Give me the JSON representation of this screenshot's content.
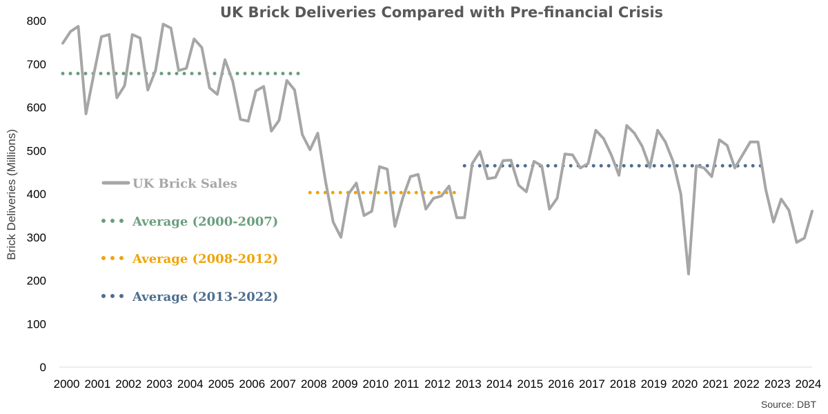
{
  "chart_data": {
    "type": "line",
    "title": "UK Brick Deliveries Compared with Pre-financial Crisis",
    "ylabel": "Brick Deliveries (Millions)",
    "xlabel": "",
    "ylim": [
      0,
      800
    ],
    "yticks": [
      0,
      100,
      200,
      300,
      400,
      500,
      600,
      700,
      800
    ],
    "grid": false,
    "legend_position": "left-middle",
    "source": "Source: DBT",
    "x_tick_labels": [
      "2000",
      "2001",
      "2002",
      "2003",
      "2004",
      "2005",
      "2006",
      "2007",
      "2008",
      "2009",
      "2010",
      "2011",
      "2012",
      "2013",
      "2014",
      "2015",
      "2016",
      "2017",
      "2018",
      "2019",
      "2020",
      "2021",
      "2022",
      "2023",
      "2024"
    ],
    "series": [
      {
        "name": "UK Brick Sales",
        "style": "solid",
        "color": "#A6A6A6",
        "values": [
          748,
          775,
          787,
          585,
          675,
          763,
          768,
          622,
          650,
          768,
          760,
          640,
          685,
          792,
          783,
          685,
          690,
          758,
          738,
          645,
          630,
          710,
          660,
          572,
          568,
          638,
          648,
          545,
          570,
          662,
          640,
          537,
          502,
          540,
          430,
          335,
          300,
          400,
          425,
          350,
          360,
          463,
          457,
          325,
          390,
          440,
          445,
          365,
          390,
          395,
          418,
          345,
          345,
          470,
          498,
          435,
          438,
          477,
          478,
          420,
          405,
          475,
          465,
          365,
          390,
          492,
          490,
          460,
          470,
          547,
          528,
          490,
          443,
          558,
          540,
          510,
          461,
          547,
          520,
          475,
          400,
          215,
          465,
          460,
          440,
          525,
          512,
          460,
          490,
          520,
          520,
          410,
          335,
          388,
          362,
          288,
          298,
          360
        ]
      },
      {
        "name": "Average (2000-2007)",
        "style": "dotted",
        "color": "#6B9E7D",
        "value": 678,
        "range": [
          "2000",
          "2007"
        ]
      },
      {
        "name": "Average (2008-2012)",
        "style": "dotted",
        "color": "#F0A30A",
        "value": 403,
        "range": [
          "2008",
          "2012"
        ]
      },
      {
        "name": "Average (2013-2022)",
        "style": "dotted",
        "color": "#4E6E8E",
        "value": 465,
        "range": [
          "2013",
          "2022"
        ]
      }
    ]
  }
}
